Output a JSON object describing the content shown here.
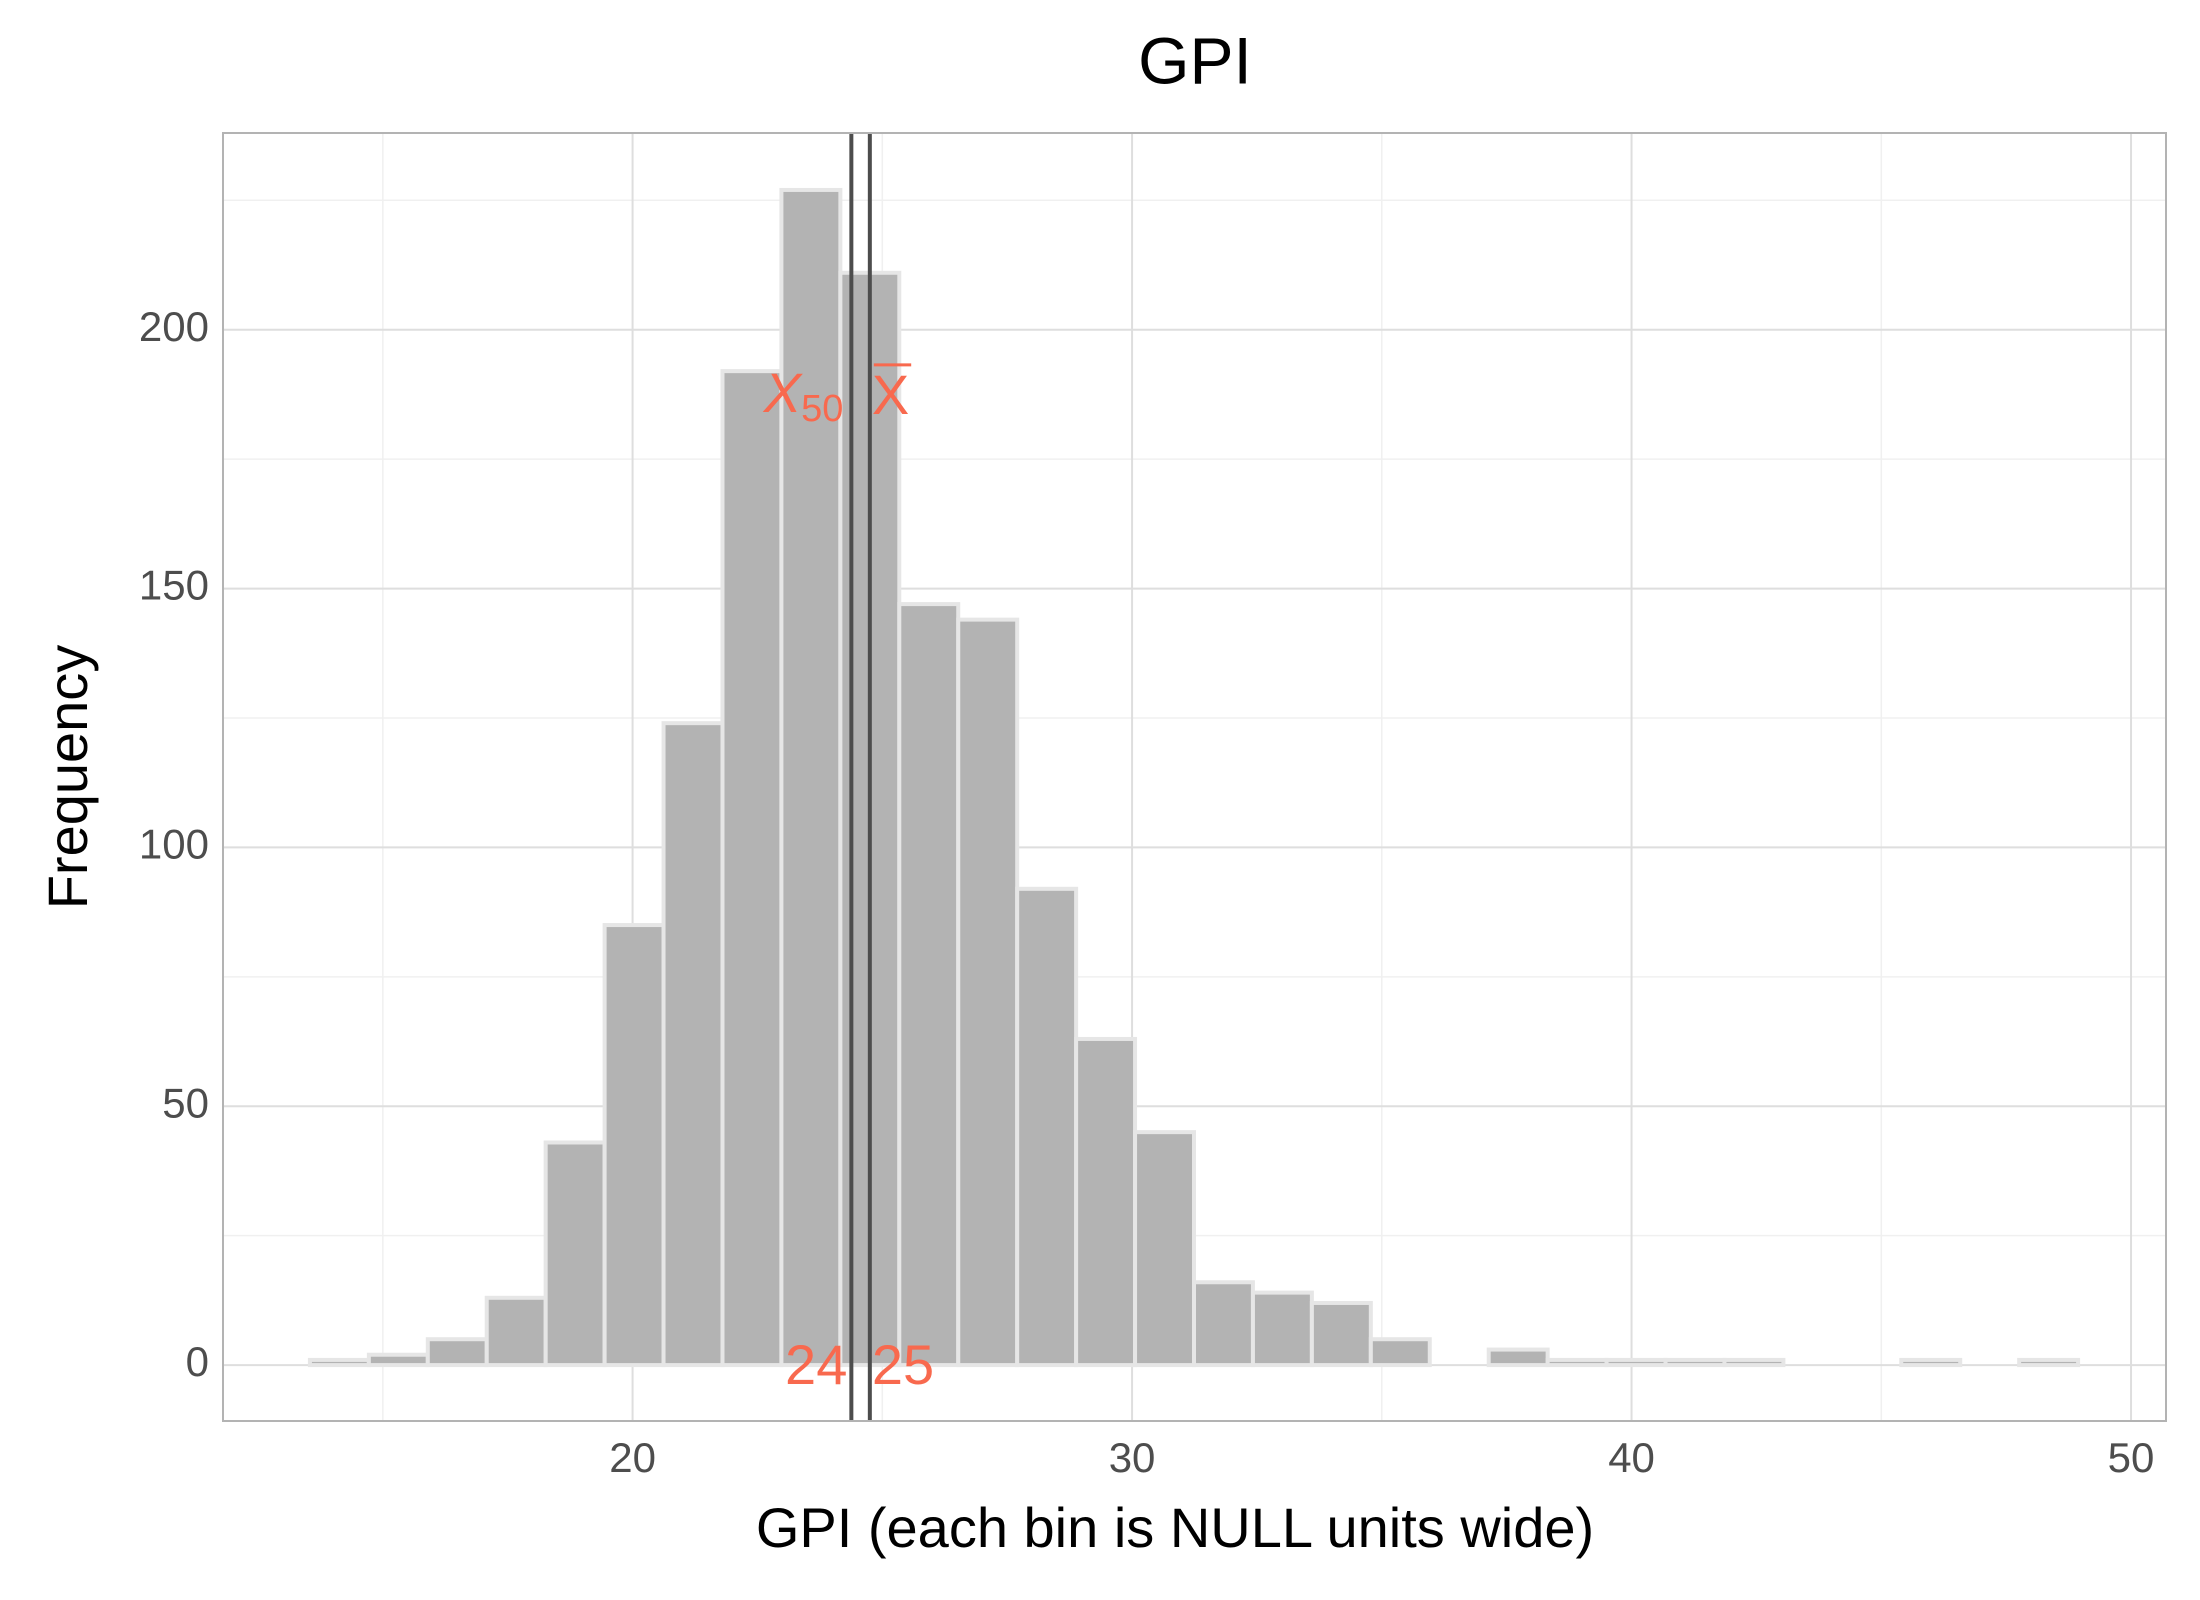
{
  "chart_data": {
    "type": "histogram",
    "title": "GPI",
    "x_label": "GPI (each bin is NULL units wide)",
    "y_label": "Frequency",
    "bins": [
      13.54,
      14.72,
      15.9,
      17.08,
      18.26,
      19.44,
      20.62,
      21.8,
      22.98,
      24.16,
      25.34,
      26.52,
      27.7,
      28.88,
      30.06,
      31.24,
      32.42,
      33.6,
      34.78,
      35.96,
      37.14,
      38.32,
      39.5,
      40.68,
      41.86,
      43.04,
      44.22,
      45.4,
      46.58,
      47.76,
      48.94
    ],
    "values": [
      1,
      2,
      5,
      13,
      43,
      85,
      124,
      192,
      227,
      211,
      147,
      144,
      92,
      63,
      45,
      16,
      14,
      12,
      5,
      0,
      3,
      1,
      1,
      1,
      1,
      0,
      0,
      1,
      0,
      1
    ],
    "color": "#b3b3b3",
    "edge_color": "#e6e6e6",
    "xlim": [
      11.8,
      50.7
    ],
    "ylim": [
      -10.8,
      238
    ],
    "xticks": [
      20,
      30,
      40,
      50
    ],
    "yticks": [
      0,
      50,
      100,
      150,
      200
    ],
    "xticks_minor": [
      15,
      25,
      35,
      45
    ],
    "yticks_minor": [
      25,
      75,
      125,
      175,
      225
    ],
    "grid": true,
    "median": {
      "value": 24.38,
      "label": "24",
      "symbol": "X",
      "subscript": "50"
    },
    "mean": {
      "value": 24.75,
      "label": "25",
      "symbol": "X"
    }
  }
}
